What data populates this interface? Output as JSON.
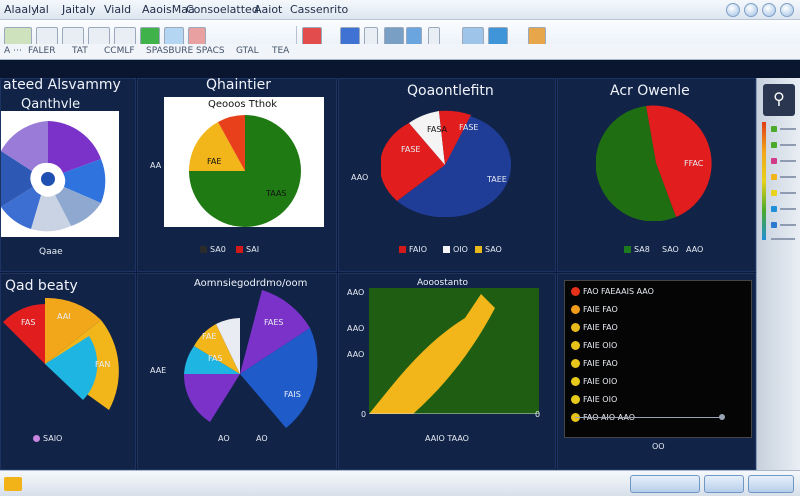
{
  "titlebar": {
    "menus": [
      "Alaaly",
      "lal",
      "Jaitaly",
      "Viald",
      "AaoisMaa",
      "Consoelatted",
      "Aaiot",
      "Cassenrito"
    ]
  },
  "ribbon": {
    "items": [
      "A ⋯",
      "FALER",
      "TAT",
      "CCMLF",
      "SPASBURE",
      "SPACS",
      "GTAL",
      "TEA"
    ]
  },
  "icons": {
    "search": "search-icon",
    "minimize": "minimize-icon",
    "maximize": "maximize-icon",
    "close": "close-icon",
    "folder": "folder-icon"
  },
  "panels": {
    "p1": {
      "title": "ateed Alsvammy",
      "subtitle": "Qanthvle",
      "footer": "Qaae"
    },
    "p2": {
      "title": "Qhaintier",
      "subtitle": "Qeooos Tthok",
      "label_a": "FAE",
      "label_b": "TAAS",
      "left_tick": "AA",
      "legend": [
        {
          "label": "SA0",
          "color": "#2a2a2a"
        },
        {
          "label": "SAI",
          "color": "#d21a1a"
        }
      ]
    },
    "p3": {
      "title": "Qoaontlefitn",
      "slice_labels": [
        "FASA",
        "FASE",
        "FASE",
        "TAEE"
      ],
      "left_tick": "AAO",
      "legend": [
        {
          "label": "FAIO",
          "color": "#d21a1a"
        },
        {
          "label": "OIO",
          "color": "#f4f4f4"
        },
        {
          "label": "SAO",
          "color": "#e7b91a"
        }
      ]
    },
    "p4": {
      "title": "Acr Owenle",
      "slice_label": "FFAC",
      "legend": [
        {
          "label": "SA8",
          "color": "#1e7a1e"
        },
        {
          "label": "SAO",
          "color": "#bbbbbb"
        },
        {
          "label": "AAO",
          "color": "#d21a1a"
        }
      ]
    },
    "p5": {
      "title": "Qad beaty",
      "slice_labels": [
        "FAS",
        "AAI",
        "FAN"
      ],
      "footer": "SAIO"
    },
    "p6": {
      "title": "Aomnsiegodrdmo/oom",
      "slice_labels": [
        "FAE",
        "FAES",
        "FAS",
        "FAIS"
      ],
      "left_tick": "AAE",
      "bottom_ticks": [
        "AO",
        "AO"
      ]
    },
    "p7": {
      "title": "Aooostanto",
      "y_ticks": [
        "AAO",
        "AAO",
        "AAO"
      ],
      "x_ticks": [
        "0",
        "0"
      ],
      "footer": "AAIO TAAO"
    },
    "p8": {
      "rows": [
        {
          "label": "FAO FAEAAIS AAO",
          "color": "#e5311a"
        },
        {
          "label": "FAIE FAO",
          "color": "#f29d1a"
        },
        {
          "label": "FAIE FAO",
          "color": "#e7b91a"
        },
        {
          "label": "FAIE OIO",
          "color": "#e7c21a"
        },
        {
          "label": "FAIE FAO",
          "color": "#e8c51a"
        },
        {
          "label": "FAIE OIO",
          "color": "#e8cb1a"
        },
        {
          "label": "FAIE OIO",
          "color": "#e8cb1a"
        },
        {
          "label": "FAO AIO AAO",
          "color": "#e7c21a"
        }
      ],
      "footer": "OO"
    }
  },
  "statusbar": {
    "tabs": [
      "",
      "",
      ""
    ]
  },
  "colors": {
    "bg": "#0d1b38",
    "panel": "#112347",
    "red": "#e11d1d",
    "blue": "#1f3c96",
    "green": "#1f7a14",
    "yellow": "#f2b51a",
    "purple": "#7a32c9"
  }
}
